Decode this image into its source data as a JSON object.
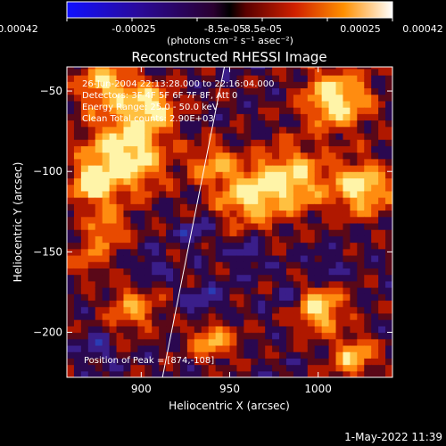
{
  "chart_data": {
    "type": "heatmap",
    "title": "Reconstructed RHESSI Image",
    "xlabel": "Heliocentric X (arcsec)",
    "ylabel": "Heliocentric Y (arcsec)",
    "xlim": [
      858,
      1042
    ],
    "ylim": [
      -228,
      -35
    ],
    "x_ticks": [
      900,
      950,
      1000
    ],
    "y_ticks": [
      -50,
      -100,
      -150,
      -200
    ],
    "colorbar": {
      "ticks": [
        "-0.00042",
        "-0.00025",
        "-8.5e-05",
        "8.5e-05",
        "0.00025",
        "0.00042"
      ],
      "unit_label": "(photons cm⁻² s⁻¹ asec⁻²)",
      "range": [
        -0.00042,
        0.00042
      ]
    },
    "annotations": [
      "26-Jun-2004 22:13:28.000 to 22:16:04.000",
      "Detectors: 3F 4F 5F 6F 7F 8F, Att 0",
      "Energy Range: 25.0 - 50.0 keV",
      "Clean    Total counts: 2.90E+03"
    ],
    "peak_label": "Position of Peak = [874,-108]",
    "limb_line": [
      [
        912,
        -228
      ],
      [
        947,
        -35
      ]
    ],
    "timestamp": "1-May-2022 11:39",
    "colors": {
      "background": "#000000",
      "low": "#0000ff",
      "mid": "#3a0a5a",
      "high": "#ffffff"
    }
  }
}
